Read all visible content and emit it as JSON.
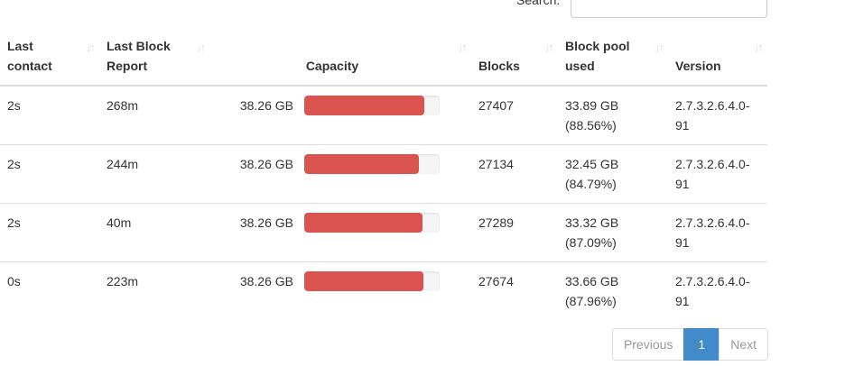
{
  "search": {
    "label": "Search:",
    "value": "",
    "placeholder": ""
  },
  "colors": {
    "bar_fill": "#d9534f",
    "bar_track": "#f5f5f5",
    "active_page_bg": "#428bca",
    "border": "#ddd",
    "muted_text": "#999",
    "text": "#333"
  },
  "table": {
    "sort_icon_glyph": "↓↑",
    "columns": {
      "last_contact": "Last contact",
      "last_block_report": "Last Block Report",
      "capacity": "Capacity",
      "blocks": "Blocks",
      "block_pool_used": "Block pool used",
      "version": "Version"
    },
    "rows": [
      {
        "last_contact": "2s",
        "last_block_report": "268m",
        "capacity_text": "38.26 GB",
        "capacity_used_pct": 88.56,
        "blocks": "27407",
        "block_pool_used": "33.89 GB (88.56%)",
        "version": "2.7.3.2.6.4.0-91"
      },
      {
        "last_contact": "2s",
        "last_block_report": "244m",
        "capacity_text": "38.26 GB",
        "capacity_used_pct": 84.79,
        "blocks": "27134",
        "block_pool_used": "32.45 GB (84.79%)",
        "version": "2.7.3.2.6.4.0-91"
      },
      {
        "last_contact": "2s",
        "last_block_report": "40m",
        "capacity_text": "38.26 GB",
        "capacity_used_pct": 87.09,
        "blocks": "27289",
        "block_pool_used": "33.32 GB (87.09%)",
        "version": "2.7.3.2.6.4.0-91"
      },
      {
        "last_contact": "0s",
        "last_block_report": "223m",
        "capacity_text": "38.26 GB",
        "capacity_used_pct": 87.96,
        "blocks": "27674",
        "block_pool_used": "33.66 GB (87.96%)",
        "version": "2.7.3.2.6.4.0-91"
      }
    ]
  },
  "pagination": {
    "previous_label": "Previous",
    "active_page": "1",
    "next_label": "Next"
  }
}
